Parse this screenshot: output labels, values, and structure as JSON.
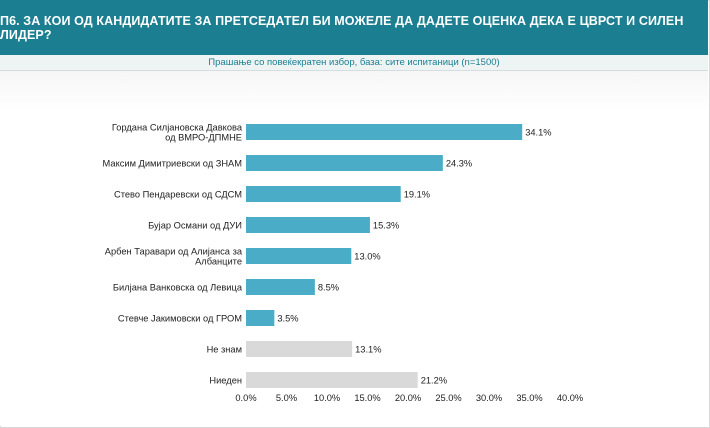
{
  "header": {
    "title": "П6. ЗА КОИ ОД КАНДИДАТИТЕ ЗА ПРЕТСЕДАТЕЛ БИ МОЖЕЛЕ ДА ДАДЕТЕ ОЦЕНКА ДЕКА Е ЦВРСТ И СИЛЕН ЛИДЕР?",
    "subtitle": "Прашање со повеќекратен избор, база: сите испитаници (n=1500)"
  },
  "colors": {
    "header_bg": "#1b7f91",
    "bar_primary": "#4aacc6",
    "bar_secondary": "#d9d9d9"
  },
  "chart_data": {
    "type": "bar",
    "orientation": "horizontal",
    "categories": [
      [
        "Гордана Силјановска Давкова",
        "од ВМРО-ДПМНЕ"
      ],
      [
        "Максим Димитриевски од ЗНАМ"
      ],
      [
        "Стево Пендаревски од СДСМ"
      ],
      [
        "Бујар Османи од ДУИ"
      ],
      [
        "Арбен Таравари од Алијанса за",
        "Албанците"
      ],
      [
        "Билјана Ванковска од Левица"
      ],
      [
        "Стевче Јакимовски од ГРОМ"
      ],
      [
        "Не знам"
      ],
      [
        "Ниеден"
      ]
    ],
    "values": [
      34.1,
      24.3,
      19.1,
      15.3,
      13.0,
      8.5,
      3.5,
      13.1,
      21.2
    ],
    "value_labels": [
      "34.1%",
      "24.3%",
      "19.1%",
      "15.3%",
      "13.0%",
      "8.5%",
      "3.5%",
      "13.1%",
      "21.2%"
    ],
    "bar_colors": [
      "primary",
      "primary",
      "primary",
      "primary",
      "primary",
      "primary",
      "primary",
      "secondary",
      "secondary"
    ],
    "xlim": [
      0,
      40
    ],
    "ticks": [
      0,
      5,
      10,
      15,
      20,
      25,
      30,
      35,
      40
    ],
    "tick_labels": [
      "0.0%",
      "5.0%",
      "10.0%",
      "15.0%",
      "20.0%",
      "25.0%",
      "30.0%",
      "35.0%",
      "40.0%"
    ],
    "grid": false,
    "legend": "none"
  }
}
